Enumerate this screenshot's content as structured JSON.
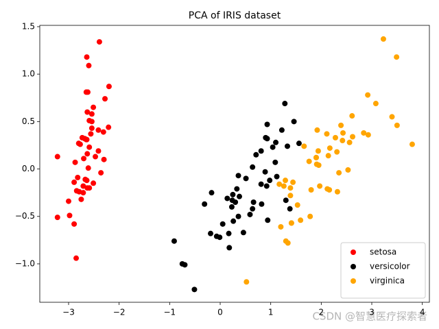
{
  "chart_data": {
    "type": "scatter",
    "title": "PCA of IRIS dataset",
    "watermark": "CSDN @智慧医疗探索者",
    "xlim": [
      -3.57,
      4.14
    ],
    "ylim": [
      -1.405,
      1.514
    ],
    "xticks": [
      {
        "value": -3,
        "label": "−3"
      },
      {
        "value": -2,
        "label": "−2"
      },
      {
        "value": -1,
        "label": "−1"
      },
      0,
      1,
      2,
      3,
      4
    ],
    "yticks": [
      {
        "value": -1.0,
        "label": "−1.0"
      },
      {
        "value": -0.5,
        "label": "−0.5"
      },
      {
        "value": 0.0,
        "label": "0.0"
      },
      0.5,
      {
        "value": 1.0,
        "label": "1.0"
      },
      1.5
    ],
    "legend": "lower right",
    "series": [
      {
        "name": "setosa",
        "color": "#ff0000",
        "x": [
          -2.68,
          -2.71,
          -2.89,
          -2.75,
          -2.73,
          -2.28,
          -2.82,
          -2.63,
          -2.89,
          -2.67,
          -2.51,
          -2.61,
          -2.79,
          -3.22,
          -2.64,
          -2.39,
          -2.62,
          -2.65,
          -2.2,
          -2.59,
          -2.31,
          -2.54,
          -3.22,
          -2.3,
          -2.36,
          -2.51,
          -2.47,
          -2.56,
          -2.64,
          -2.63,
          -2.59,
          -2.41,
          -2.65,
          -2.6,
          -2.64,
          -2.87,
          -2.63,
          -2.8,
          -2.98,
          -2.59,
          -2.77,
          -2.85,
          -3.0,
          -2.41,
          -2.21,
          -2.71,
          -2.54,
          -2.84,
          -2.54,
          -2.7
        ],
        "values": [
          0.32,
          -0.18,
          -0.14,
          -0.32,
          0.33,
          0.74,
          -0.09,
          0.16,
          -0.58,
          -0.11,
          0.65,
          0.01,
          -0.24,
          -0.51,
          1.18,
          1.34,
          0.81,
          0.31,
          0.87,
          0.51,
          0.39,
          0.43,
          0.13,
          0.1,
          -0.04,
          -0.15,
          0.13,
          0.37,
          0.31,
          -0.2,
          -0.2,
          0.41,
          0.81,
          1.09,
          -0.12,
          0.07,
          0.6,
          0.27,
          -0.49,
          0.23,
          0.26,
          -0.94,
          -0.34,
          0.19,
          0.44,
          -0.25,
          0.5,
          -0.23,
          0.58,
          0.11
        ]
      },
      {
        "name": "versicolor",
        "color": "#000000",
        "x": [
          1.28,
          0.93,
          1.46,
          0.18,
          1.09,
          0.64,
          1.1,
          -0.75,
          1.04,
          -0.01,
          -0.51,
          0.51,
          0.26,
          0.98,
          -0.17,
          0.93,
          0.66,
          0.24,
          0.94,
          0.05,
          1.12,
          0.36,
          1.3,
          0.92,
          0.71,
          0.9,
          1.33,
          1.56,
          0.81,
          -0.31,
          -0.07,
          -0.19,
          0.14,
          1.38,
          0.59,
          0.81,
          1.22,
          0.82,
          0.25,
          0.17,
          0.46,
          0.89,
          0.23,
          -0.7,
          0.36,
          0.33,
          0.38,
          0.64,
          -0.91,
          0.3
        ],
        "values": [
          0.69,
          0.32,
          0.5,
          -0.83,
          0.07,
          -0.42,
          0.28,
          -1.0,
          0.23,
          -0.72,
          -1.27,
          -0.1,
          -0.55,
          -0.12,
          -0.25,
          0.47,
          -0.35,
          -0.33,
          -0.54,
          -0.58,
          -0.08,
          -0.07,
          -0.33,
          -0.18,
          0.15,
          0.33,
          0.24,
          0.27,
          -0.16,
          -0.37,
          -0.71,
          -0.68,
          -0.31,
          -0.42,
          -0.48,
          0.19,
          0.41,
          -0.37,
          -0.27,
          -0.68,
          -0.67,
          -0.03,
          -0.4,
          -1.01,
          -0.5,
          -0.21,
          -0.29,
          0.02,
          -0.76,
          -0.35
        ]
      },
      {
        "name": "virginica",
        "color": "#ffa500",
        "x": [
          2.53,
          1.41,
          2.62,
          1.97,
          2.35,
          3.4,
          0.52,
          2.93,
          2.32,
          2.92,
          1.66,
          1.8,
          2.17,
          1.34,
          1.59,
          1.9,
          1.95,
          3.49,
          3.8,
          1.3,
          2.43,
          1.2,
          3.5,
          1.39,
          2.28,
          2.61,
          1.26,
          1.29,
          2.12,
          2.39,
          2.84,
          3.23,
          2.16,
          1.44,
          1.78,
          3.08,
          2.14,
          1.91,
          1.17,
          2.11,
          2.31,
          1.92,
          1.41,
          2.56,
          2.42,
          1.94,
          1.53,
          1.76,
          1.9,
          1.39
        ],
        "values": [
          -0.01,
          -0.57,
          0.34,
          -0.18,
          -0.04,
          0.55,
          -1.19,
          0.36,
          -0.24,
          0.78,
          0.24,
          -0.22,
          0.22,
          -0.78,
          -0.54,
          0.12,
          0.04,
          1.18,
          0.26,
          -0.76,
          0.38,
          -0.61,
          0.46,
          -0.2,
          0.33,
          0.56,
          -0.18,
          -0.12,
          -0.21,
          0.46,
          0.38,
          1.37,
          -0.22,
          -0.14,
          -0.5,
          0.69,
          0.14,
          0.05,
          -0.16,
          0.37,
          0.18,
          0.41,
          -0.57,
          0.28,
          0.3,
          0.19,
          -0.38,
          0.08,
          0.12,
          -0.28
        ]
      }
    ]
  }
}
